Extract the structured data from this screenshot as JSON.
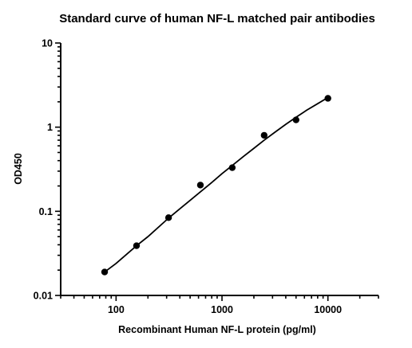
{
  "chart_data": {
    "type": "scatter",
    "title": "Standard curve of human NF-L matched pair antibodies",
    "xlabel": "Recombinant Human NF-L protein (pg/ml)",
    "ylabel": "OD450",
    "xscale": "log",
    "yscale": "log",
    "xlim": [
      30,
      30000
    ],
    "ylim": [
      0.01,
      10
    ],
    "x_ticks": [
      100,
      1000,
      10000
    ],
    "x_tick_labels": [
      "100",
      "1000",
      "10000"
    ],
    "y_ticks": [
      0.01,
      0.1,
      1,
      10
    ],
    "y_tick_labels": [
      "0.01",
      "0.1",
      "1",
      "10"
    ],
    "grid": false,
    "series": [
      {
        "x": [
          78,
          156,
          313,
          625,
          1250,
          2500,
          5000,
          10000
        ],
        "y": [
          0.019,
          0.039,
          0.084,
          0.205,
          0.33,
          0.8,
          1.22,
          2.2
        ]
      }
    ],
    "fit_curve": {
      "x": [
        78,
        100,
        156,
        200,
        313,
        400,
        625,
        800,
        1000,
        1250,
        1600,
        2000,
        2500,
        3200,
        4000,
        5000,
        6300,
        8000,
        10000
      ],
      "y": [
        0.019,
        0.024,
        0.039,
        0.05,
        0.083,
        0.107,
        0.17,
        0.22,
        0.28,
        0.35,
        0.45,
        0.56,
        0.7,
        0.88,
        1.08,
        1.31,
        1.59,
        1.9,
        2.25
      ]
    }
  }
}
